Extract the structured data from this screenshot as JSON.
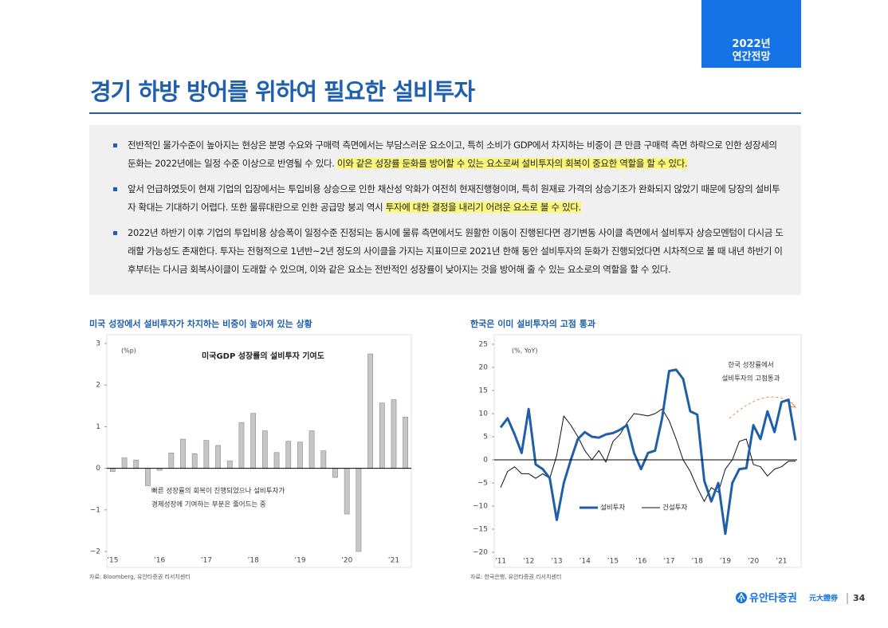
{
  "header": {
    "badge": [
      "2022년",
      "연간전망"
    ],
    "title": "경기 하방 방어를 위하여 필요한 설비투자"
  },
  "bullets": [
    {
      "text": "전반적인 물가수준이 높아지는 현상은 분명 수요와 구매력 측면에서는 부담스러운 요소이고, 특히 소비가 GDP에서 차지하는 비중이 큰 만큼 구매력 측면 하락으로 인한 성장세의 둔화는 2022년에는 일정 수준 이상으로 반영될 수 있다. ",
      "highlight": "이와 같은 성장률 둔화를 방어할 수 있는 요소로써 설비투자의 회복이 중요한 역할을 할 수 있다."
    },
    {
      "text": "앞서 언급하였듯이 현재 기업의 입장에서는 투입비용 상승으로 인한 채산성 악화가 여전히 현재진행형이며, 특히 원재료 가격의 상승기조가 완화되지 않았기 때문에 당장의 설비투자 확대는 기대하기 어렵다. 또한 물류대란으로 인한 공급망 붕괴 역시 ",
      "highlight": "투자에 대한 결정을 내리기 어려운 요소로 볼 수 있다."
    },
    {
      "text": "2022년 하반기 이후 기업의 투입비용 상승폭이 일정수준 진정되는 동시에 물류 측면에서도 원활한 이동이 진행된다면 경기변동 사이클 측면에서 설비투자 상승모멘텀이 다시금 도래할 가능성도 존재한다. 투자는 전형적으로 1년반~2년 정도의 사이클을 가지는 지표이므로 2021년 한해 동안 설비투자의 둔화가 진행되었다면 시차적으로 볼 때 내년 하반기 이후부터는 다시금 회복사이클이 도래할 수 있으며, 이와 같은 요소는 전반적인 성장률이 낮아지는 것을 방어해 줄 수 있는 요소로의 역할을 할 수 있다."
    }
  ],
  "chart_data": [
    {
      "type": "bar",
      "heading": "미국 성장에서 설비투자가 차지하는 비중이 높아져 있는 상황",
      "unit": "(%p)",
      "inner_title": "미국GDP 성장률의 설비투자 기여도",
      "annotation": [
        "빠른 성장률의 회복이 진행되었으나 설비투자가",
        "경제성장에 기여하는 부분은 줄어드는 중"
      ],
      "categories": [
        "’15",
        null,
        null,
        null,
        "’16",
        null,
        null,
        null,
        "’17",
        null,
        null,
        null,
        "’18",
        null,
        null,
        null,
        "’19",
        null,
        null,
        null,
        "’20",
        null,
        null,
        null,
        "’21",
        null
      ],
      "values": [
        -0.08,
        0.25,
        0.2,
        -0.42,
        -0.05,
        0.37,
        0.7,
        0.35,
        0.67,
        0.55,
        0.18,
        1.1,
        1.32,
        0.9,
        0.38,
        0.65,
        0.63,
        0.9,
        0.42,
        -0.22,
        -1.1,
        -2.0,
        2.75,
        1.57,
        1.65,
        1.23
      ],
      "color": "#c6c6c6",
      "ylim": [
        -2,
        3
      ],
      "yticks": [
        3,
        2,
        1,
        0,
        {
          "value": -1,
          "label": "−1"
        },
        {
          "value": -2,
          "label": "−2"
        }
      ],
      "source": "자료: Bloomberg, 유안타증권 리서치센터"
    },
    {
      "type": "line",
      "heading": "한국은 이미 설비투자의 고점 통과",
      "unit": "(%, YoY)",
      "annotation": [
        "한국 성장률에서",
        "설비투자의 고점통과"
      ],
      "categories": [
        "’11",
        null,
        null,
        null,
        "’12",
        null,
        null,
        null,
        "’13",
        null,
        null,
        null,
        "’14",
        null,
        null,
        null,
        "’15",
        null,
        null,
        null,
        "’16",
        null,
        null,
        null,
        "’17",
        null,
        null,
        null,
        "’18",
        null,
        null,
        null,
        "’19",
        null,
        null,
        null,
        "’20",
        null,
        null,
        null,
        "’21",
        null,
        null
      ],
      "series": [
        {
          "name": "설비투자",
          "color": "#1f5fa8",
          "width": 3,
          "values": [
            7,
            9,
            5.5,
            1.5,
            11,
            -1,
            -2,
            -4,
            -13,
            -5,
            0,
            4.5,
            6,
            5,
            4.8,
            5.5,
            5.8,
            6.5,
            7.5,
            1.5,
            -2,
            1.5,
            2,
            9,
            19.2,
            19.5,
            17.5,
            10.5,
            9.8,
            -4.5,
            -9,
            -5,
            -16,
            -5,
            -2,
            -1.8,
            7.5,
            4.5,
            10.5,
            6,
            12.5,
            13,
            4.2
          ]
        },
        {
          "name": "건설투자",
          "color": "#111111",
          "width": 1,
          "values": [
            -6,
            -2.5,
            -1.5,
            -3,
            -3,
            -4,
            -3,
            -4,
            1,
            9.5,
            7.5,
            5,
            2,
            0,
            2,
            -0.5,
            4,
            5.5,
            8,
            10,
            9.8,
            9.5,
            10,
            11,
            8.5,
            4.5,
            0,
            -2.5,
            -6,
            -9,
            -6,
            -7,
            -2,
            0,
            4,
            4.5,
            -1,
            -1.5,
            -3.5,
            -2,
            -1.5,
            -0.3,
            -0.3
          ]
        }
      ],
      "ylim": [
        -20,
        25
      ],
      "yticks": [
        25,
        20,
        15,
        10,
        5,
        0,
        {
          "value": -5,
          "label": "−5"
        },
        {
          "value": -10,
          "label": "−10"
        },
        {
          "value": -15,
          "label": "−15"
        },
        {
          "value": -20,
          "label": "−20"
        }
      ],
      "source": "자료: 한국은행, 유안타증권 리서치센터"
    }
  ],
  "footer": {
    "logo": "유안타증권",
    "logo_hanja": "元大證券",
    "page": "34"
  }
}
